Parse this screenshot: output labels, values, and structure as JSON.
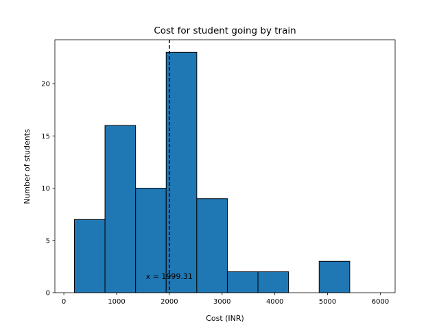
{
  "chart_data": {
    "type": "bar",
    "subtype": "histogram",
    "title": "Cost for student going by train",
    "xlabel": "Cost (INR)",
    "ylabel": "Number of students",
    "xlim": [
      -170,
      6280
    ],
    "ylim": [
      0,
      24.2
    ],
    "xticks": [
      0,
      1000,
      2000,
      3000,
      4000,
      5000,
      6000
    ],
    "yticks": [
      0,
      5,
      10,
      15,
      20
    ],
    "bins": [
      {
        "x0": 200,
        "x1": 780,
        "count": 7
      },
      {
        "x0": 780,
        "x1": 1360,
        "count": 16
      },
      {
        "x0": 1360,
        "x1": 1940,
        "count": 10
      },
      {
        "x0": 1940,
        "x1": 2520,
        "count": 23
      },
      {
        "x0": 2520,
        "x1": 3100,
        "count": 9
      },
      {
        "x0": 3100,
        "x1": 3680,
        "count": 2
      },
      {
        "x0": 3680,
        "x1": 4260,
        "count": 2
      },
      {
        "x0": 4260,
        "x1": 4840,
        "count": 0
      },
      {
        "x0": 4840,
        "x1": 5420,
        "count": 3
      },
      {
        "x0": 5420,
        "x1": 6000,
        "count": 0
      }
    ],
    "vline": {
      "x": 1999.31,
      "style": "dashed",
      "color": "#000000"
    },
    "annotation": {
      "text": "x = 1999.31",
      "x": 1999.31,
      "y": 1.3
    },
    "bar_color": "#1f77b4",
    "edge_color": "#000000",
    "grid": false,
    "legend": "none"
  }
}
